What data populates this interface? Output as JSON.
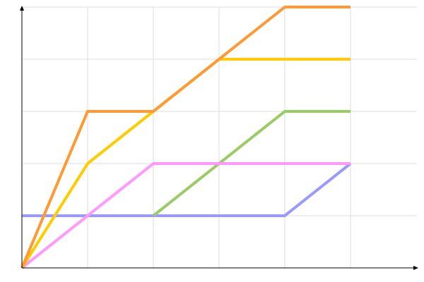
{
  "chart_data": {
    "type": "line",
    "title": "",
    "xlabel": "",
    "ylabel": "",
    "xlim": [
      0,
      6
    ],
    "ylim": [
      0,
      5
    ],
    "grid": true,
    "legend": "none",
    "series": [
      {
        "color": "#9999ff",
        "points": [
          [
            0,
            1
          ],
          [
            4,
            1
          ],
          [
            5,
            2
          ]
        ]
      },
      {
        "color": "#99cc66",
        "points": [
          [
            2,
            1
          ],
          [
            4,
            3
          ],
          [
            5,
            3
          ]
        ]
      },
      {
        "color": "#ff99ff",
        "points": [
          [
            0,
            0
          ],
          [
            2,
            2
          ],
          [
            5,
            2
          ]
        ]
      },
      {
        "color": "#ffcc00",
        "points": [
          [
            0,
            0
          ],
          [
            1,
            2
          ],
          [
            2,
            3
          ],
          [
            3,
            4
          ],
          [
            5,
            4
          ]
        ]
      },
      {
        "color": "#ff9933",
        "points": [
          [
            0,
            0
          ],
          [
            1,
            3
          ],
          [
            2,
            3
          ],
          [
            4,
            5
          ],
          [
            5,
            5
          ]
        ]
      }
    ]
  }
}
